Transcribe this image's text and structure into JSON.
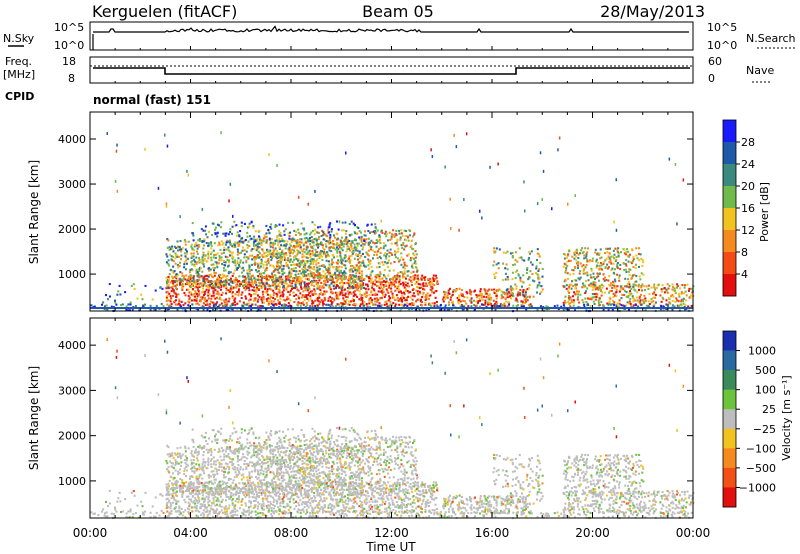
{
  "header": {
    "station": "Kerguelen (fitACF)",
    "beam": "Beam 05",
    "date": "28/May/2013"
  },
  "nsky_panel": {
    "left_label": "N.Sky",
    "left_ticks": [
      "10^5",
      "10^0"
    ],
    "right_ticks": [
      "10^5",
      "10^0"
    ],
    "right_label": "N.Search"
  },
  "freq_panel": {
    "left_label_1": "Freq.",
    "left_label_2": "[MHz]",
    "left_ticks": [
      "18",
      "8"
    ],
    "right_ticks": [
      "60",
      "0"
    ],
    "right_label": "Nave",
    "cpid_label": "CPID",
    "program": "normal (fast) 151"
  },
  "chart_data": [
    {
      "type": "heatmap",
      "name": "power",
      "ylabel": "Slant Range [km]",
      "y_ticks": [
        "1000",
        "2000",
        "3000",
        "4000"
      ],
      "ylim": [
        180,
        4600
      ],
      "x_ticks": [
        "00:00",
        "04:00",
        "08:00",
        "12:00",
        "16:00",
        "20:00",
        "00:00"
      ],
      "colorbar": {
        "label": "Power [dB]",
        "ticks": [
          "4",
          "8",
          "12",
          "16",
          "20",
          "24",
          "28"
        ],
        "colors": [
          "#1a1aff",
          "#1e5aa8",
          "#3b8a7e",
          "#6fba4a",
          "#f2c21e",
          "#f58a1e",
          "#f24b16",
          "#e30e0e"
        ]
      }
    },
    {
      "type": "heatmap",
      "name": "velocity",
      "ylabel": "Slant Range [km]",
      "y_ticks": [
        "1000",
        "2000",
        "3000",
        "4000"
      ],
      "ylim": [
        180,
        4600
      ],
      "x_ticks": [
        "00:00",
        "04:00",
        "08:00",
        "12:00",
        "16:00",
        "20:00",
        "00:00"
      ],
      "colorbar": {
        "label": "Velocity [m s⁻¹]",
        "ticks": [
          "1000",
          "500",
          "100",
          "25",
          "−25",
          "−100",
          "−500",
          "−1000"
        ],
        "colors": [
          "#1a2fb0",
          "#2a6aa0",
          "#3a8a5a",
          "#6cc43c",
          "#bdbdbd",
          "#f2c21e",
          "#f58a1e",
          "#f25016",
          "#e30e0e"
        ]
      }
    }
  ],
  "xlabel": "Time UT"
}
